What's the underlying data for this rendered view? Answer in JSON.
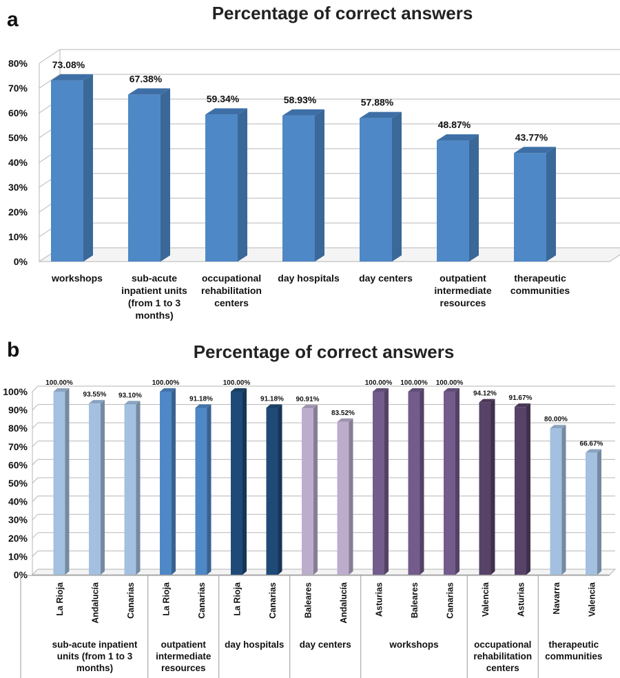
{
  "figure": {
    "panels": [
      "a",
      "b"
    ]
  },
  "chart_data": [
    {
      "type": "bar",
      "panel": "a",
      "title": "Percentage of correct answers",
      "categories": [
        [
          "workshops"
        ],
        [
          "sub-acute",
          "inpatient units",
          "(from 1 to 3",
          "months)"
        ],
        [
          "occupational",
          "rehabilitation",
          "centers"
        ],
        [
          "day hospitals"
        ],
        [
          "day centers"
        ],
        [
          "outpatient",
          "intermediate",
          "resources"
        ],
        [
          "therapeutic",
          "communities"
        ]
      ],
      "values": [
        73.08,
        67.38,
        59.34,
        58.93,
        57.88,
        48.87,
        43.77
      ],
      "data_labels": [
        "73.08%",
        "67.38%",
        "59.34%",
        "58.93%",
        "57.88%",
        "48.87%",
        "43.77%"
      ],
      "ylim": [
        0,
        80
      ],
      "yticks": [
        0,
        10,
        20,
        30,
        40,
        50,
        60,
        70,
        80
      ],
      "ytick_labels": [
        "0%",
        "10%",
        "20%",
        "30%",
        "40%",
        "50%",
        "60%",
        "70%",
        "80%"
      ],
      "grid": true,
      "colors": {
        "front": "#4f88c6",
        "side": "#3a6898",
        "top": "#3d6fa6"
      }
    },
    {
      "type": "bar",
      "panel": "b",
      "title": "Percentage of correct answers",
      "ylim": [
        0,
        100
      ],
      "yticks": [
        0,
        10,
        20,
        30,
        40,
        50,
        60,
        70,
        80,
        90,
        100
      ],
      "ytick_labels": [
        "0%",
        "10%",
        "20%",
        "30%",
        "40%",
        "50%",
        "60%",
        "70%",
        "80%",
        "90%",
        "100%"
      ],
      "grid": true,
      "groups": [
        {
          "name": [
            "sub-acute inpatient",
            "units (from 1 to 3",
            "months)"
          ],
          "color": "#a3c0e0",
          "bars": [
            {
              "region": "La Rioja",
              "value": 100.0,
              "label": "100.00%"
            },
            {
              "region": "Andalucía",
              "value": 93.55,
              "label": "93.55%"
            },
            {
              "region": "Canarias",
              "value": 93.1,
              "label": "93.10%"
            }
          ]
        },
        {
          "name": [
            "outpatient",
            "intermediate",
            "resources"
          ],
          "color": "#4f88c6",
          "bars": [
            {
              "region": "La Rioja",
              "value": 100.0,
              "label": "100.00%"
            },
            {
              "region": "Canarias",
              "value": 91.18,
              "label": "91.18%"
            }
          ]
        },
        {
          "name": [
            "day hospitals"
          ],
          "color": "#1f4a78",
          "bars": [
            {
              "region": "La Rioja",
              "value": 100.0,
              "label": "100.00%"
            },
            {
              "region": "Canarias",
              "value": 91.18,
              "label": "91.18%"
            }
          ]
        },
        {
          "name": [
            "day centers"
          ],
          "color": "#bcadcd",
          "bars": [
            {
              "region": "Baleares",
              "value": 90.91,
              "label": "90.91%"
            },
            {
              "region": "Andalucía",
              "value": 83.52,
              "label": "83.52%"
            }
          ]
        },
        {
          "name": [
            "workshops"
          ],
          "color": "#735c8c",
          "bars": [
            {
              "region": "Asturias",
              "value": 100.0,
              "label": "100.00%"
            },
            {
              "region": "Baleares",
              "value": 100.0,
              "label": "100.00%"
            },
            {
              "region": "Canarias",
              "value": 100.0,
              "label": "100.00%"
            }
          ]
        },
        {
          "name": [
            "occupational",
            "rehabilitation",
            "centers"
          ],
          "color": "#574268",
          "bars": [
            {
              "region": "Valencia",
              "value": 94.12,
              "label": "94.12%"
            },
            {
              "region": "Asturias",
              "value": 91.67,
              "label": "91.67%"
            }
          ]
        },
        {
          "name": [
            "therapeutic",
            "communities"
          ],
          "color": "#a3c0e0",
          "bars": [
            {
              "region": "Navarra",
              "value": 80.0,
              "label": "80.00%"
            },
            {
              "region": "Valencia",
              "value": 66.67,
              "label": "66.67%"
            }
          ]
        }
      ]
    }
  ]
}
